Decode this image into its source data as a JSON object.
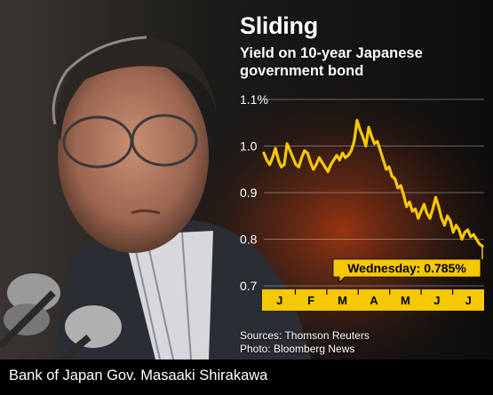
{
  "caption": "Bank of Japan Gov. Masaaki Shirakawa",
  "sources": [
    "Sources: Thomson Reuters",
    "Photo: Bloomberg News"
  ],
  "colors": {
    "line": "#f5c800",
    "axis_band": "#f5c800",
    "background": "#000000"
  },
  "chart_data": {
    "type": "line",
    "title": "Sliding",
    "subtitle": "Yield on 10-year Japanese government bond",
    "xlabel": "",
    "ylabel": "",
    "ylim": [
      0.7,
      1.1
    ],
    "y_ticks": [
      "1.1%",
      "1.0",
      "0.9",
      "0.8",
      "0.7"
    ],
    "y_tick_values": [
      1.1,
      1.0,
      0.9,
      0.8,
      0.7
    ],
    "x_ticks": [
      "J",
      "F",
      "M",
      "A",
      "M",
      "J",
      "J"
    ],
    "grid": true,
    "legend": "none",
    "annotation": {
      "label": "Wednesday: 0.785%",
      "value": 0.785
    },
    "series": [
      {
        "values": [
          0.985,
          0.97,
          0.96,
          0.975,
          0.995,
          0.97,
          0.955,
          0.96,
          1.005,
          0.99,
          0.975,
          0.96,
          0.955,
          0.975,
          0.99,
          0.985,
          0.965,
          0.95,
          0.96,
          0.975,
          0.965,
          0.955,
          0.945,
          0.96,
          0.97,
          0.98,
          0.97,
          0.985,
          0.975,
          0.98,
          0.99,
          1.01,
          1.055,
          1.035,
          1.02,
          1.0,
          1.04,
          1.02,
          1.005,
          1.01,
          0.99,
          0.97,
          0.95,
          0.955,
          0.935,
          0.93,
          0.91,
          0.915,
          0.895,
          0.87,
          0.88,
          0.86,
          0.865,
          0.845,
          0.86,
          0.875,
          0.855,
          0.845,
          0.865,
          0.89,
          0.87,
          0.845,
          0.83,
          0.85,
          0.84,
          0.815,
          0.83,
          0.82,
          0.8,
          0.815,
          0.82,
          0.805,
          0.81,
          0.8,
          0.79,
          0.785
        ]
      }
    ]
  }
}
